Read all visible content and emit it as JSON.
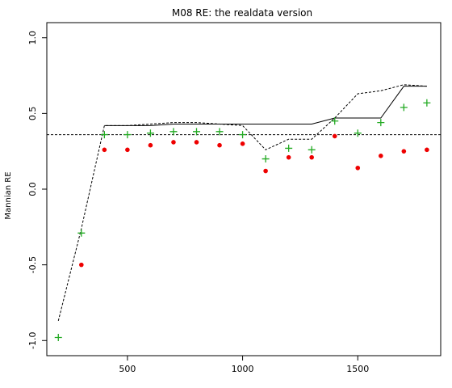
{
  "chart_data": {
    "type": "scatter",
    "title": "M08 RE: the realdata version",
    "xlabel": "",
    "ylabel": "Mannian RE",
    "xlim": [
      150,
      1860
    ],
    "ylim": [
      -1.1,
      1.1
    ],
    "x_ticks": [
      500,
      1000,
      1500
    ],
    "y_ticks": [
      1.0,
      0.5,
      0.0,
      -0.5,
      -1.0
    ],
    "x_tick_labels": [
      "500",
      "1000",
      "1500"
    ],
    "y_tick_labels": [
      "1.0",
      "0.5",
      "0.0",
      "-0.5",
      "-1.0"
    ],
    "reference_line": {
      "y": 0.36,
      "style": "dashed",
      "color": "#000000"
    },
    "grid": false,
    "series": [
      {
        "type": "points-plus",
        "color": "#22aa22",
        "x": [
          200,
          300,
          400,
          500,
          600,
          700,
          800,
          900,
          1000,
          1100,
          1200,
          1300,
          1400,
          1500,
          1600,
          1700,
          1800
        ],
        "y": [
          -0.98,
          -0.29,
          0.36,
          0.36,
          0.37,
          0.38,
          0.38,
          0.38,
          0.36,
          0.2,
          0.27,
          0.26,
          0.45,
          0.37,
          0.44,
          0.54,
          0.57
        ]
      },
      {
        "type": "points-dot",
        "color": "#ee0000",
        "x": [
          300,
          400,
          500,
          600,
          700,
          800,
          900,
          1000,
          1100,
          1200,
          1300,
          1400,
          1500,
          1600,
          1700,
          1800
        ],
        "y": [
          -0.5,
          0.26,
          0.26,
          0.29,
          0.31,
          0.31,
          0.29,
          0.3,
          0.12,
          0.21,
          0.21,
          0.35,
          0.14,
          0.22,
          0.25,
          0.26
        ]
      },
      {
        "type": "line-solid",
        "color": "#000000",
        "x": [
          400,
          500,
          600,
          700,
          800,
          900,
          1000,
          1100,
          1200,
          1300,
          1400,
          1500,
          1600,
          1700,
          1800
        ],
        "y": [
          0.42,
          0.42,
          0.42,
          0.43,
          0.43,
          0.43,
          0.43,
          0.43,
          0.43,
          0.43,
          0.47,
          0.47,
          0.47,
          0.68,
          0.68
        ]
      },
      {
        "type": "line-dashed",
        "color": "#000000",
        "x": [
          200,
          300,
          400,
          500,
          600,
          700,
          800,
          900,
          1000,
          1100,
          1200,
          1300,
          1400,
          1500,
          1600,
          1700,
          1800
        ],
        "y": [
          -0.87,
          -0.26,
          0.42,
          0.42,
          0.43,
          0.44,
          0.44,
          0.43,
          0.42,
          0.26,
          0.33,
          0.33,
          0.47,
          0.63,
          0.65,
          0.69,
          0.68
        ]
      }
    ]
  }
}
